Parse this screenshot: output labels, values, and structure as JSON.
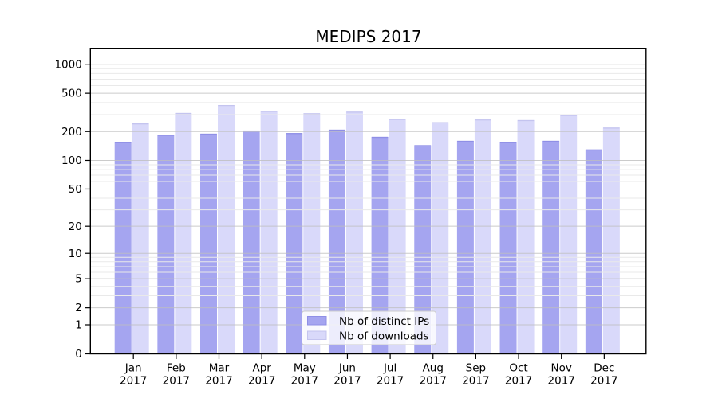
{
  "title": "MEDIPS 2017",
  "chart_data": {
    "type": "bar",
    "title": "MEDIPS 2017",
    "categories": [
      "Jan 2017",
      "Feb 2017",
      "Mar 2017",
      "Apr 2017",
      "May 2017",
      "Jun 2017",
      "Jul 2017",
      "Aug 2017",
      "Sep 2017",
      "Oct 2017",
      "Nov 2017",
      "Dec 2017"
    ],
    "series": [
      {
        "name": "Nb of distinct IPs",
        "color": "#a5a5f0",
        "edge_color": "#8f8fe6",
        "values": [
          155,
          185,
          190,
          205,
          193,
          209,
          176,
          144,
          160,
          155,
          160,
          130
        ]
      },
      {
        "name": "Nb of downloads",
        "color": "#d9d9fa",
        "edge_color": "#c4c4ef",
        "values": [
          243,
          312,
          377,
          328,
          310,
          322,
          270,
          250,
          267,
          263,
          297,
          220
        ]
      }
    ],
    "yscale": "log1p",
    "yticks": [
      0,
      1,
      2,
      5,
      10,
      20,
      50,
      100,
      200,
      500,
      1000
    ],
    "ytick_labels": [
      "0",
      "1",
      "2",
      "5",
      "10",
      "20",
      "50",
      "100",
      "200",
      "500",
      "1000"
    ],
    "minor_gridlines": [
      3,
      4,
      6,
      7,
      8,
      9,
      30,
      40,
      60,
      70,
      80,
      90,
      300,
      400,
      600,
      700,
      800,
      900
    ],
    "ylim": [
      0,
      1480
    ],
    "grid": true,
    "xlabel": "",
    "ylabel": "",
    "legend": {
      "position": "inside-bottom-center",
      "items": [
        "Nb of distinct IPs",
        "Nb of downloads"
      ]
    }
  },
  "colors": {
    "background": "#ffffff",
    "axis": "#000000",
    "major_grid": "#bfbfbf",
    "minor_grid": "#e9e9e9",
    "legend_border": "#cccccc",
    "legend_background": "#ffffff"
  }
}
